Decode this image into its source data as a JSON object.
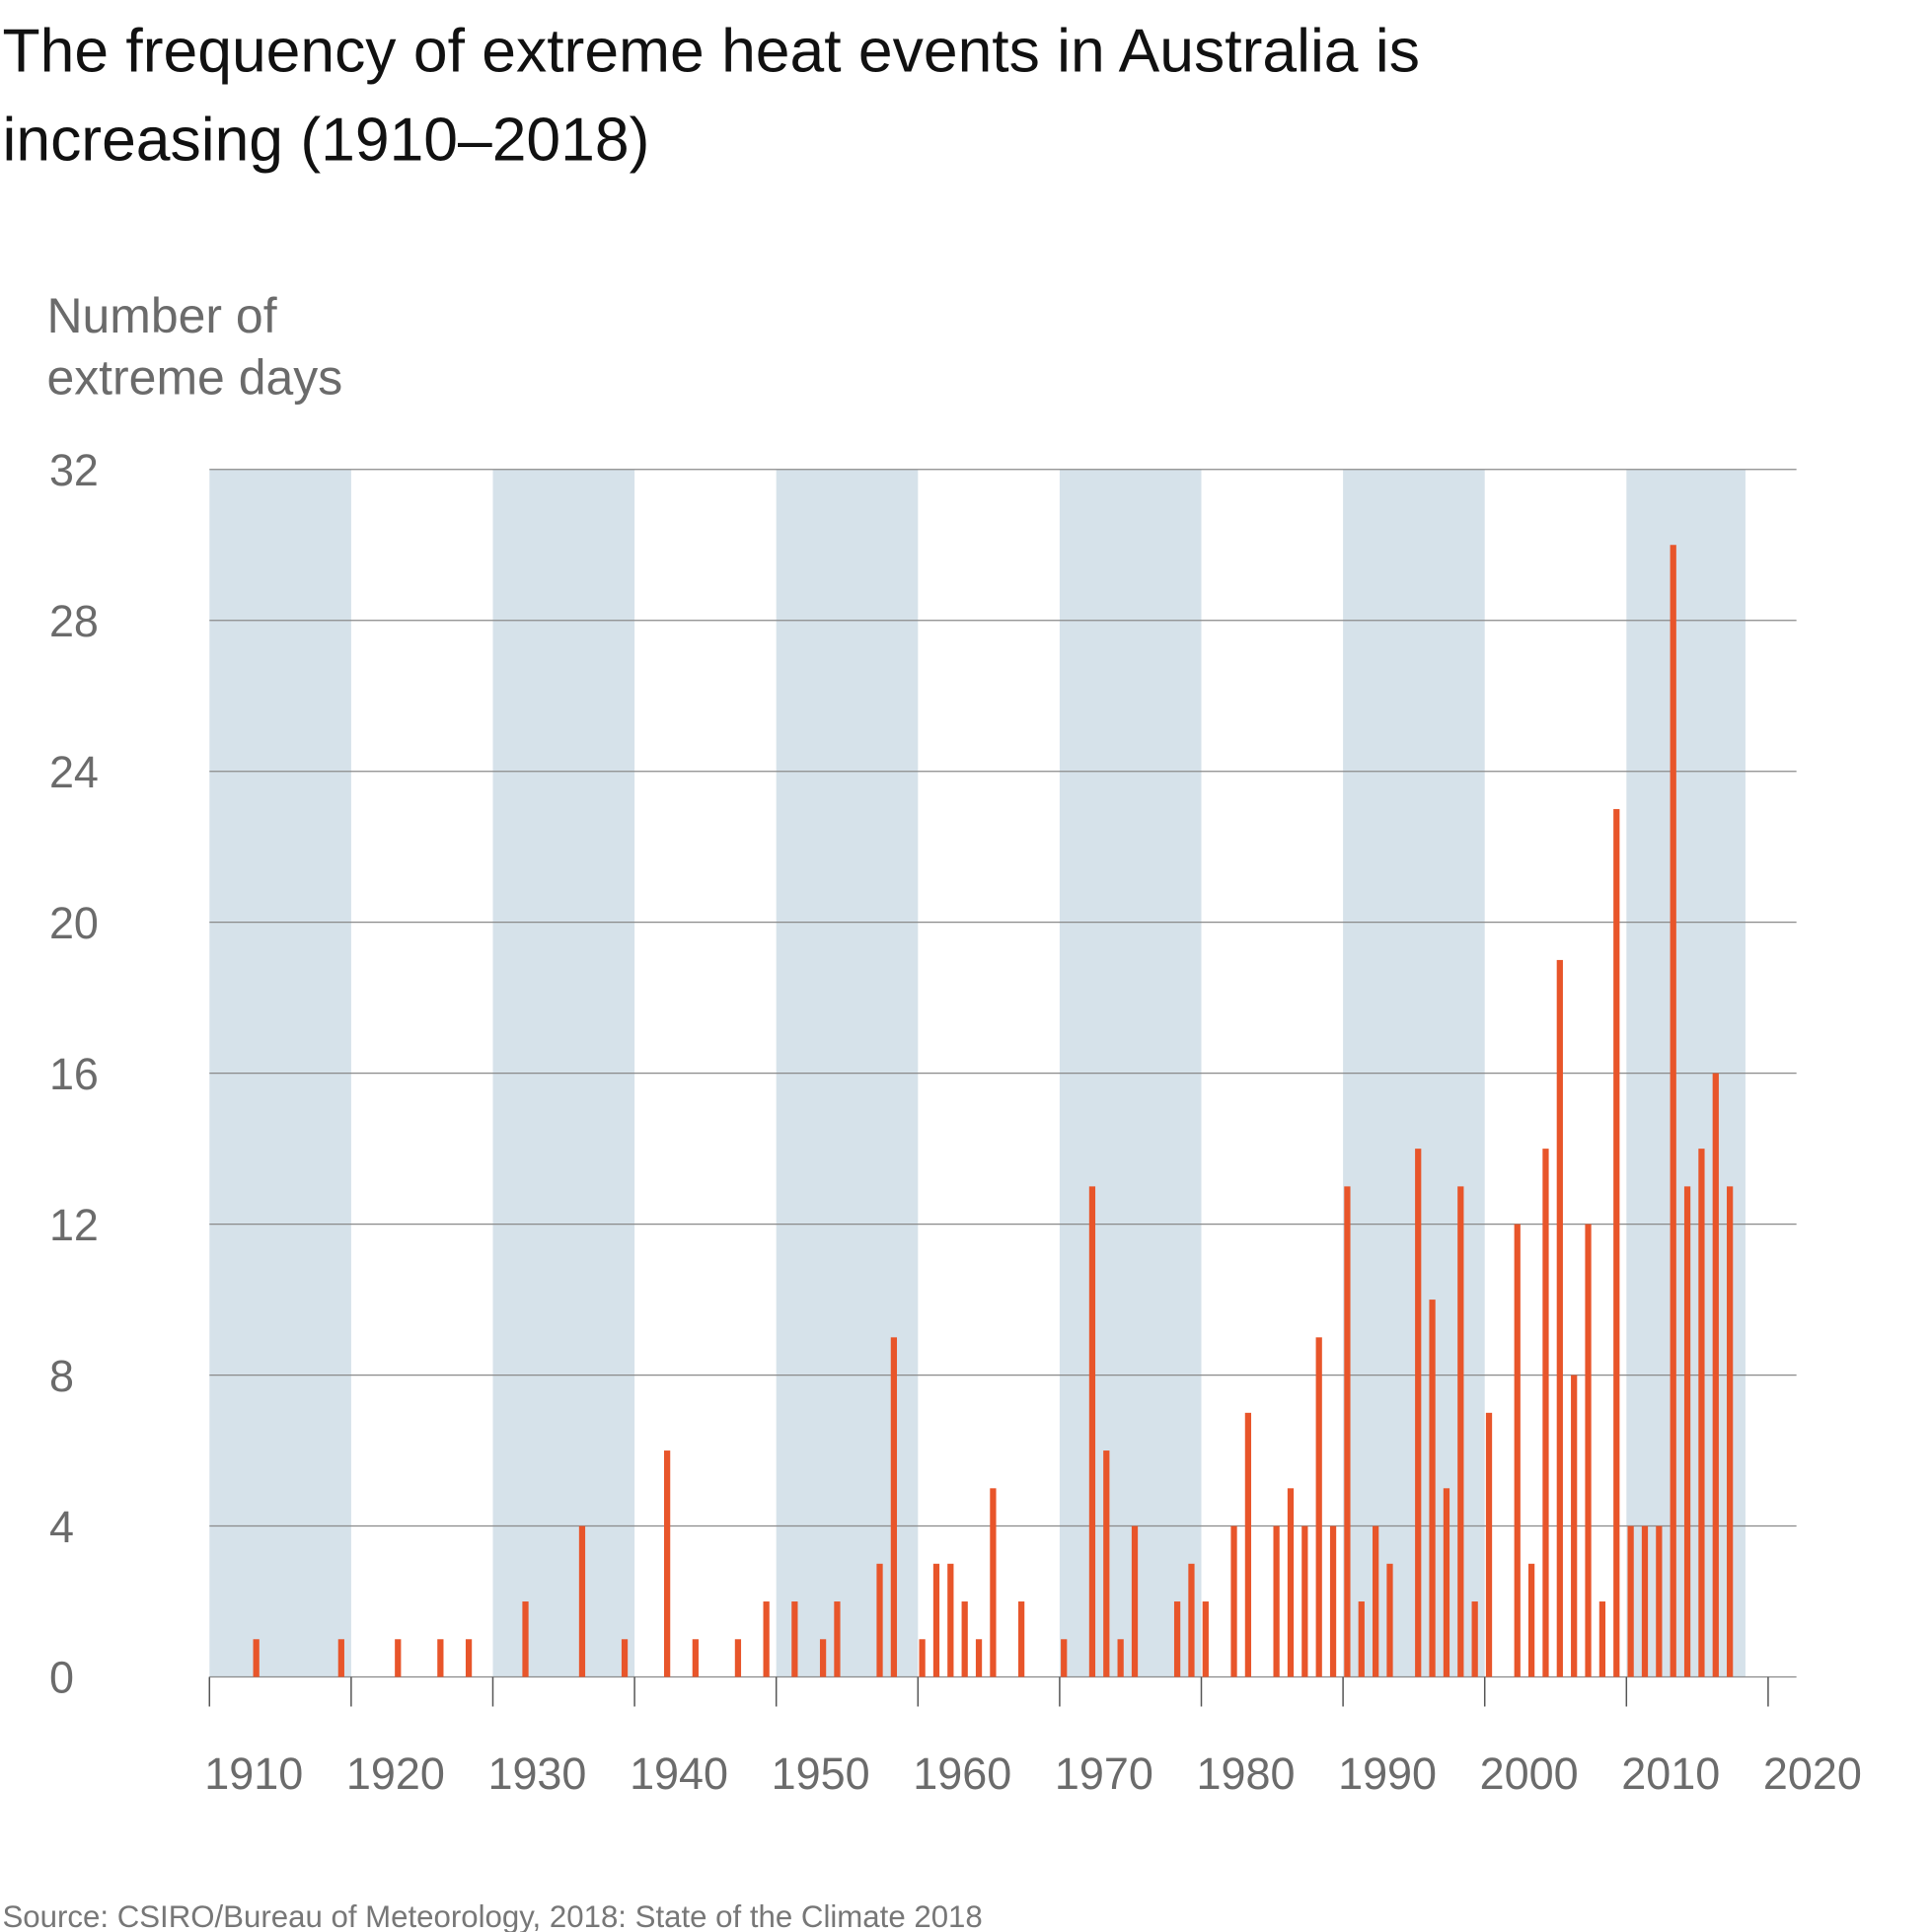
{
  "title_lines": [
    "The frequency of extreme heat events in Australia is",
    "increasing (1910–2018)"
  ],
  "source": "Source: CSIRO/Bureau of Meteorology, 2018: State of the Climate 2018",
  "chart_data": {
    "type": "bar",
    "title": "The frequency of extreme heat events in Australia is increasing (1910–2018)",
    "ylabel_lines": [
      "Number of",
      "extreme days"
    ],
    "xlabel": "",
    "xlim": [
      1910,
      2020
    ],
    "ylim": [
      0,
      32
    ],
    "xticks": [
      1910,
      1920,
      1930,
      1940,
      1950,
      1960,
      1970,
      1980,
      1990,
      2000,
      2010,
      2020
    ],
    "yticks": [
      0,
      4,
      8,
      12,
      16,
      20,
      24,
      28,
      32
    ],
    "grid": "horizontal",
    "shaded_decades": [
      [
        1910,
        1920
      ],
      [
        1930,
        1940
      ],
      [
        1950,
        1960
      ],
      [
        1970,
        1980
      ],
      [
        1990,
        2000
      ],
      [
        2010,
        2018
      ]
    ],
    "colors": {
      "bar": "#e8552a",
      "band": "#d6e2ea",
      "grid": "#8a8a8a"
    },
    "x": [
      1913,
      1919,
      1923,
      1926,
      1928,
      1932,
      1936,
      1939,
      1942,
      1944,
      1947,
      1949,
      1951,
      1953,
      1954,
      1957,
      1958,
      1960,
      1961,
      1962,
      1963,
      1964,
      1965,
      1967,
      1970,
      1972,
      1973,
      1974,
      1975,
      1978,
      1979,
      1980,
      1982,
      1983,
      1985,
      1986,
      1987,
      1988,
      1989,
      1990,
      1991,
      1992,
      1993,
      1995,
      1996,
      1997,
      1998,
      1999,
      2000,
      2002,
      2003,
      2004,
      2005,
      2006,
      2007,
      2008,
      2009,
      2010,
      2011,
      2012,
      2013,
      2014,
      2015,
      2016,
      2017
    ],
    "values": [
      1,
      1,
      1,
      1,
      1,
      2,
      4,
      1,
      6,
      1,
      1,
      2,
      2,
      1,
      2,
      3,
      9,
      1,
      3,
      3,
      2,
      1,
      5,
      2,
      1,
      13,
      6,
      1,
      4,
      2,
      3,
      2,
      4,
      7,
      4,
      5,
      4,
      9,
      4,
      13,
      2,
      4,
      3,
      14,
      10,
      5,
      13,
      2,
      7,
      12,
      3,
      14,
      19,
      8,
      12,
      2,
      23,
      4,
      4,
      4,
      30,
      13,
      14,
      16,
      13
    ]
  }
}
